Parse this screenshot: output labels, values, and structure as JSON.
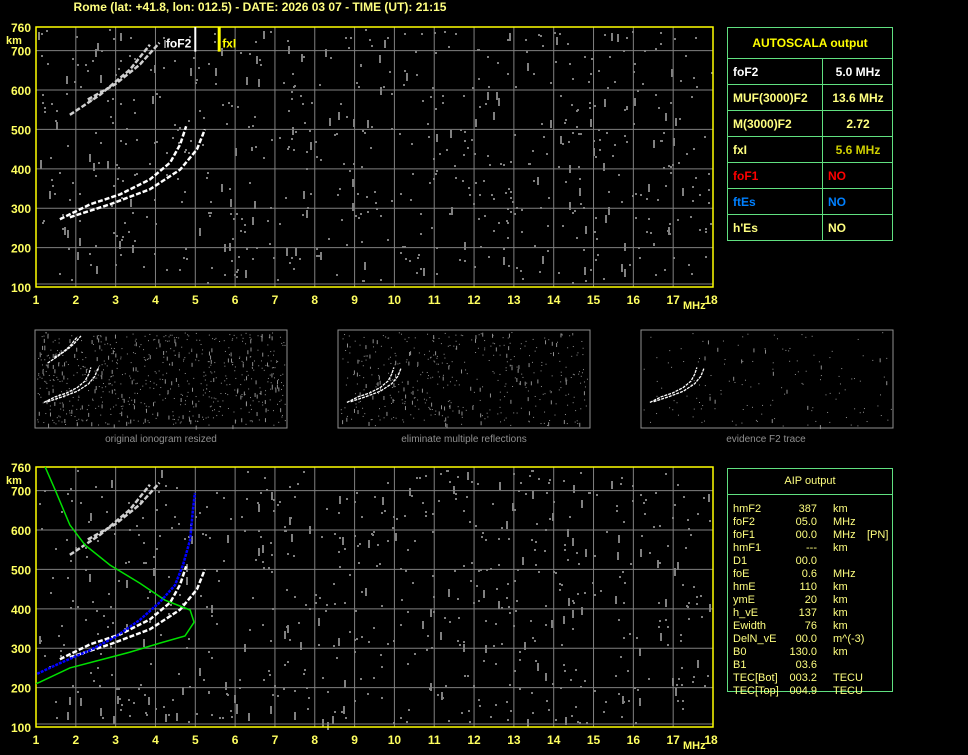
{
  "header": {
    "title": "Rome (lat: +41.8, lon: 012.5) - DATE: 2026 03 07 - TIME (UT): 21:15"
  },
  "colors": {
    "axis": "#ffff00",
    "grid": "#808080",
    "trace": "#ffffff",
    "noise": "#808080",
    "model_green": "#00e000",
    "model_blue": "#0000ff",
    "table_border": "#60e080",
    "text_yellow": "#ffff80",
    "fof1": "#ff0000",
    "ftes": "#0080ff"
  },
  "autoscala": {
    "title": "AUTOSCALA output",
    "rows": [
      {
        "label": "foF2",
        "value": "5.0 MHz",
        "color": "#ffffff"
      },
      {
        "label": "MUF(3000)F2",
        "value": "13.6 MHz",
        "color": "#ffff80"
      },
      {
        "label": "M(3000)F2",
        "value": "2.72",
        "color": "#ffff80"
      },
      {
        "label": "fxI",
        "value": "5.6 MHz",
        "color": "#d0d000"
      },
      {
        "label": "foF1",
        "value": "NO",
        "color": "#ff0000"
      },
      {
        "label": "ftEs",
        "value": "NO",
        "color": "#0080ff"
      },
      {
        "label": "h'Es",
        "value": "NO",
        "color": "#ffff80"
      }
    ]
  },
  "aip": {
    "title": "AIP output",
    "rows": [
      {
        "name": "hmF2",
        "value": "387",
        "unit": "km",
        "extra": ""
      },
      {
        "name": "foF2",
        "value": "05.0",
        "unit": "MHz",
        "extra": ""
      },
      {
        "name": "foF1",
        "value": "00.0",
        "unit": "MHz",
        "extra": "[PN]"
      },
      {
        "name": "hmF1",
        "value": "---",
        "unit": "km",
        "extra": ""
      },
      {
        "name": "D1",
        "value": "00.0",
        "unit": "",
        "extra": ""
      },
      {
        "name": "foE",
        "value": "0.6",
        "unit": "MHz",
        "extra": ""
      },
      {
        "name": "hmE",
        "value": "110",
        "unit": "km",
        "extra": ""
      },
      {
        "name": "ymE",
        "value": "20",
        "unit": "km",
        "extra": ""
      },
      {
        "name": "h_vE",
        "value": "137",
        "unit": "km",
        "extra": ""
      },
      {
        "name": "Ewidth",
        "value": "76",
        "unit": "km",
        "extra": ""
      },
      {
        "name": "DelN_vE",
        "value": "00.0",
        "unit": "m^(-3)",
        "extra": ""
      },
      {
        "name": "B0",
        "value": "130.0",
        "unit": "km",
        "extra": ""
      },
      {
        "name": "B1",
        "value": "03.6",
        "unit": "",
        "extra": ""
      },
      {
        "name": "TEC[Bot]",
        "value": "003.2",
        "unit": "TECU",
        "extra": ""
      },
      {
        "name": "TEC[Top]",
        "value": "004.9",
        "unit": "TECU",
        "extra": ""
      }
    ]
  },
  "thumbnails": [
    {
      "caption": "original ionogram resized"
    },
    {
      "caption": "eliminate multiple reflections"
    },
    {
      "caption": "evidence F2 trace"
    }
  ],
  "chart_data": [
    {
      "type": "scatter",
      "xlabel": "MHz",
      "ylabel": "km",
      "xlim": [
        1,
        18
      ],
      "ylim": [
        100,
        760
      ],
      "xticks": [
        "1",
        "2",
        "3",
        "4",
        "5",
        "6",
        "7",
        "8",
        "9",
        "10",
        "11",
        "12",
        "13",
        "14",
        "15",
        "16",
        "17",
        "18"
      ],
      "yticks": [
        "760",
        "700",
        "600",
        "500",
        "400",
        "300",
        "200",
        "100"
      ],
      "grid": true,
      "markers": [
        {
          "label": "foF2",
          "freq": 5.0,
          "color": "#ffffff"
        },
        {
          "label": "fxI",
          "freq": 5.6,
          "color": "#ffff00"
        }
      ],
      "traces": [
        {
          "role": "o",
          "points": [
            [
              1.6,
              272
            ],
            [
              2.36,
              310
            ],
            [
              3.11,
              335
            ],
            [
              3.86,
              373
            ],
            [
              4.37,
              416
            ],
            [
              4.62,
              462
            ],
            [
              4.77,
              508
            ]
          ]
        },
        {
          "role": "x",
          "points": [
            [
              1.85,
              277
            ],
            [
              2.86,
              310
            ],
            [
              3.86,
              348
            ],
            [
              4.62,
              398
            ],
            [
              5.04,
              449
            ],
            [
              5.24,
              500
            ]
          ]
        },
        {
          "role": "multiple",
          "points": [
            [
              1.85,
              537
            ],
            [
              2.61,
              588
            ],
            [
              3.36,
              652
            ],
            [
              3.86,
              715
            ]
          ]
        },
        {
          "role": "multiple",
          "points": [
            [
              2.3,
              576
            ],
            [
              2.98,
              614
            ],
            [
              3.61,
              665
            ],
            [
              4.1,
              720
            ]
          ]
        }
      ]
    },
    {
      "type": "line",
      "xlabel": "MHz",
      "ylabel": "km",
      "xlim": [
        1,
        18
      ],
      "ylim": [
        100,
        760
      ],
      "xticks": [
        "1",
        "2",
        "3",
        "4",
        "5",
        "6",
        "7",
        "8",
        "9",
        "10",
        "11",
        "12",
        "13",
        "14",
        "15",
        "16",
        "17",
        "18"
      ],
      "yticks": [
        "760",
        "700",
        "600",
        "500",
        "400",
        "300",
        "200",
        "100"
      ],
      "grid": true,
      "series": [
        {
          "color": "#00e000",
          "points": [
            [
              1.23,
              760
            ],
            [
              1.48,
              702
            ],
            [
              1.85,
              613
            ],
            [
              2.23,
              562
            ],
            [
              2.86,
              511
            ],
            [
              3.61,
              465
            ],
            [
              4.24,
              422
            ],
            [
              4.87,
              397
            ],
            [
              4.97,
              366
            ],
            [
              4.74,
              331
            ],
            [
              4.11,
              313
            ],
            [
              3.36,
              290
            ],
            [
              2.61,
              270
            ],
            [
              1.85,
              250
            ],
            [
              1.1,
              214
            ],
            [
              1.0,
              210
            ]
          ]
        },
        {
          "color": "#0000ff",
          "points": [
            [
              1.03,
              235
            ],
            [
              1.6,
              262
            ],
            [
              2.36,
              295
            ],
            [
              2.98,
              328
            ],
            [
              3.61,
              372
            ],
            [
              4.11,
              417
            ],
            [
              4.49,
              460
            ],
            [
              4.69,
              511
            ],
            [
              4.87,
              575
            ],
            [
              4.94,
              651
            ],
            [
              4.99,
              694
            ]
          ]
        }
      ]
    }
  ]
}
